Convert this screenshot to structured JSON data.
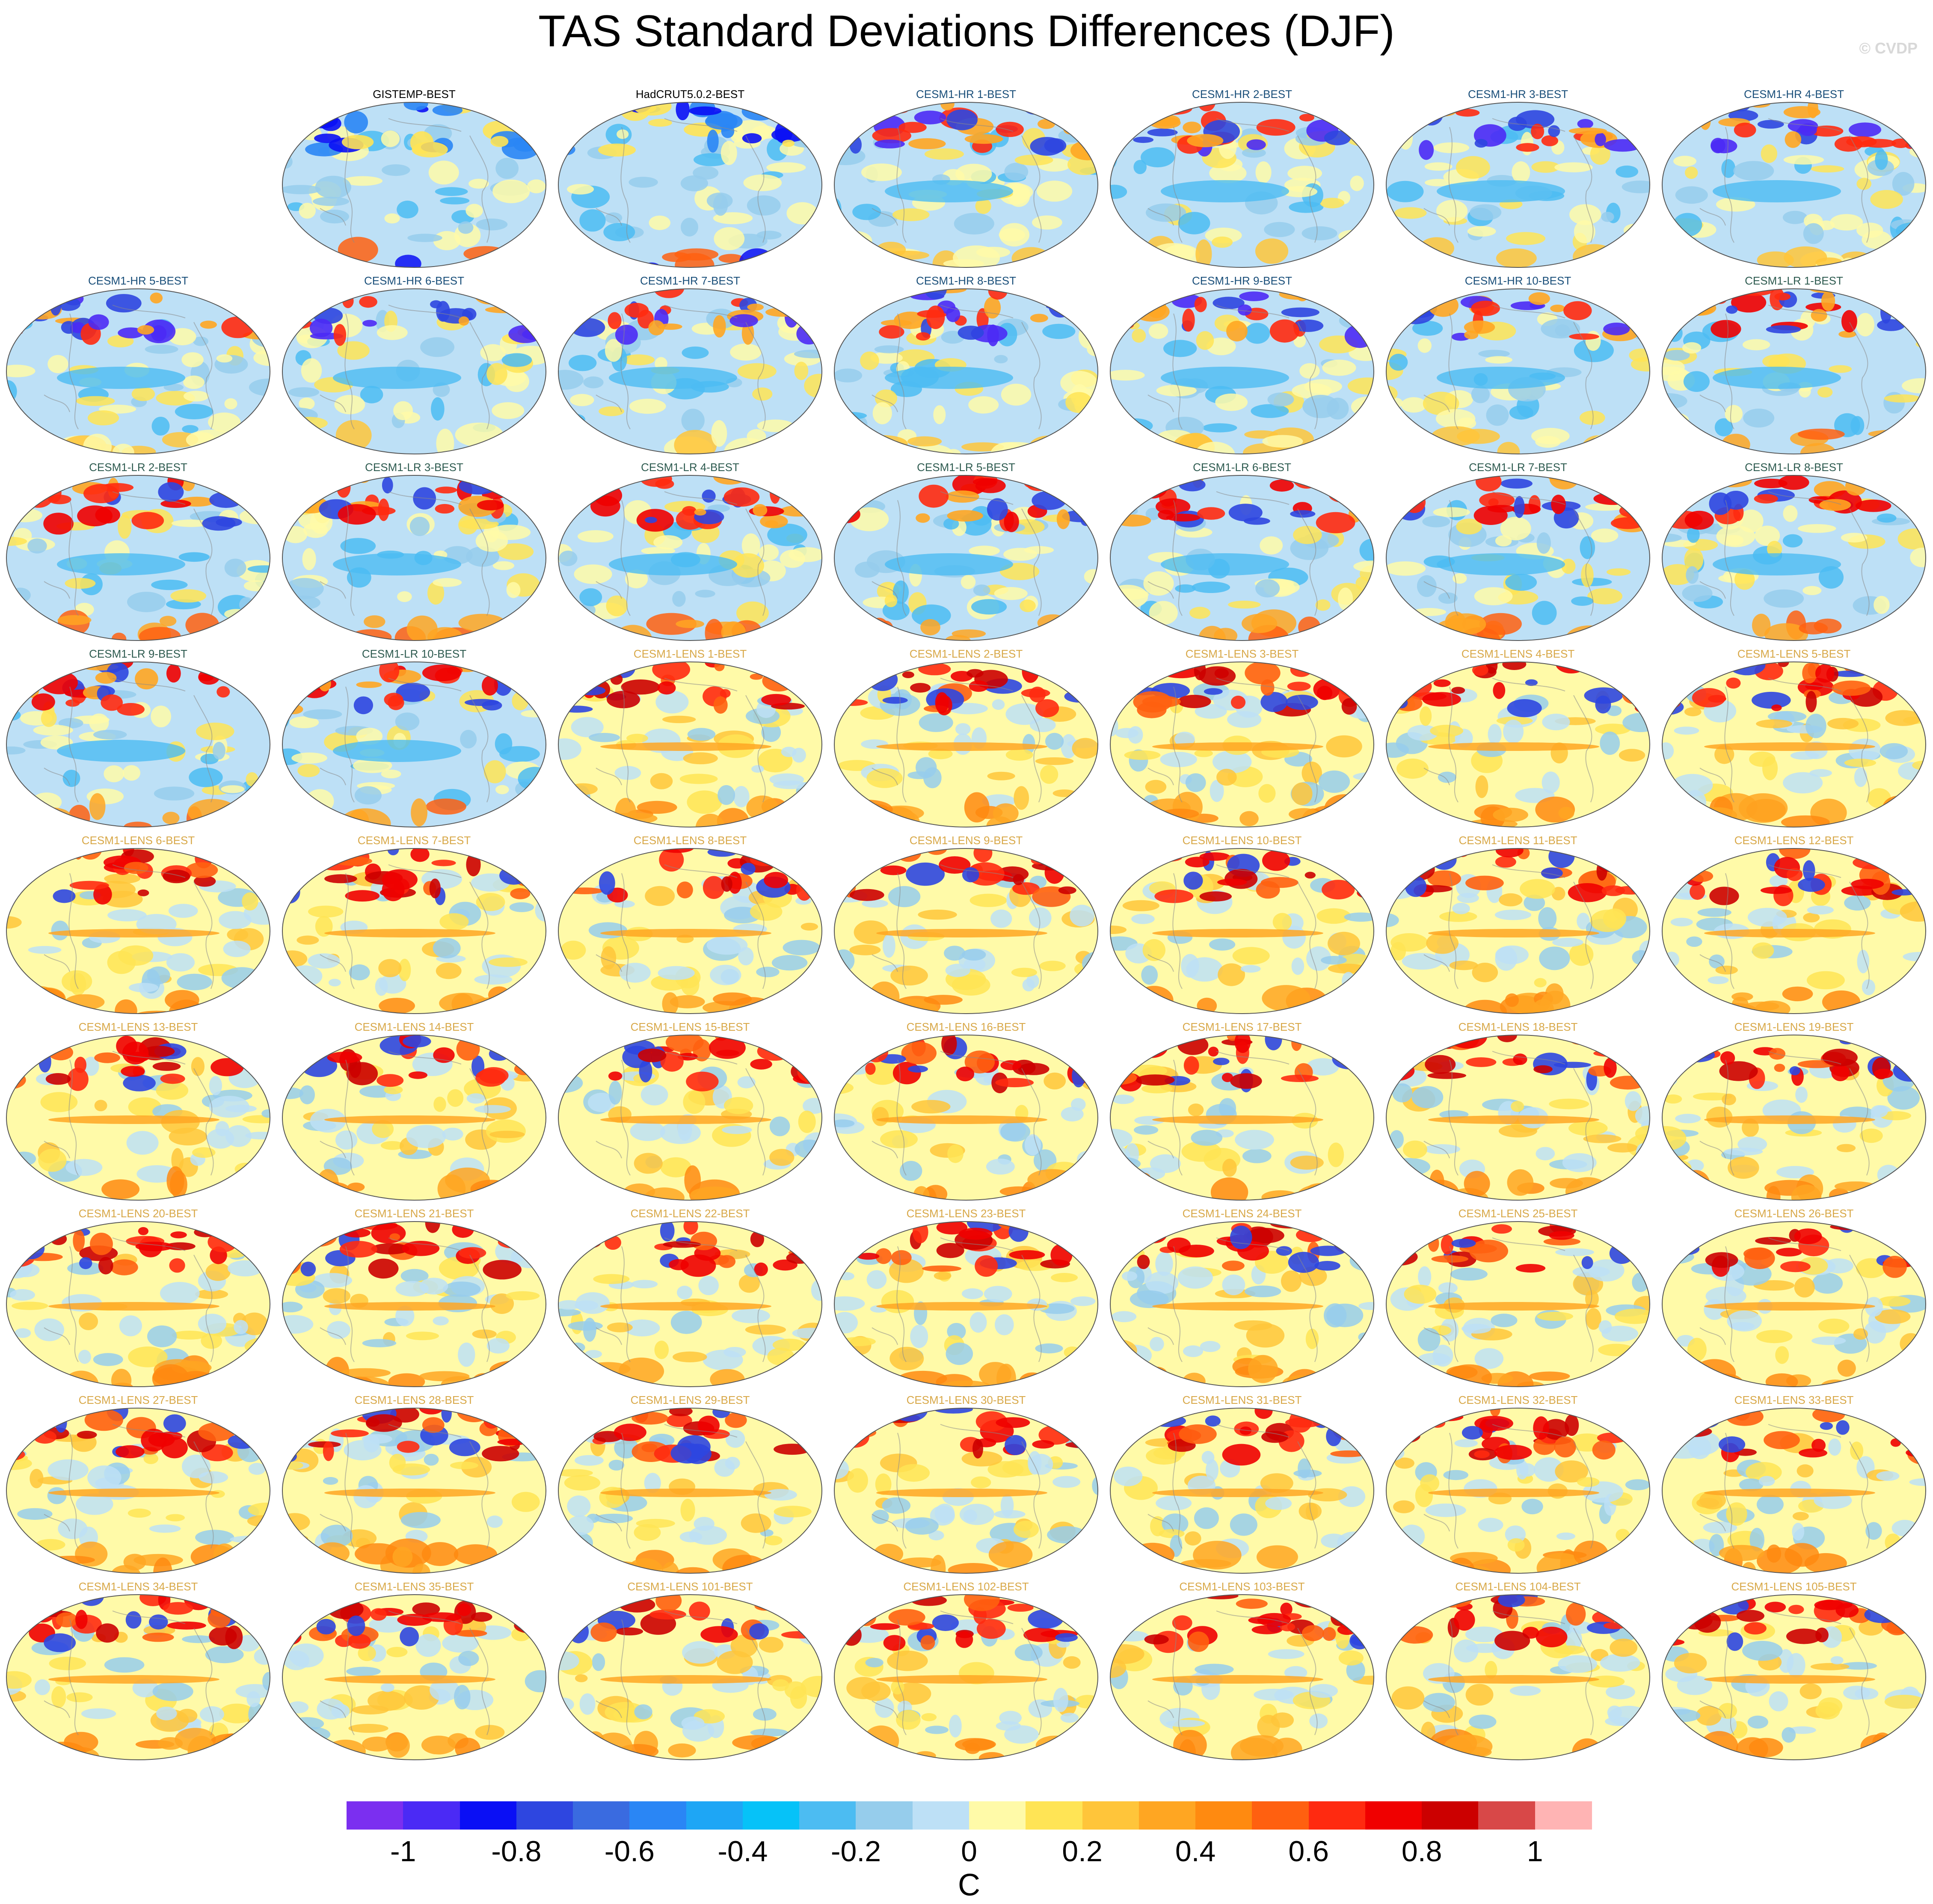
{
  "title": "TAS Standard Deviations Differences (DJF)",
  "watermark": "© CVDP",
  "colors": {
    "title_obs": "#000000",
    "title_hr": "#1a4f7a",
    "title_lr": "#2e5b50",
    "title_lens": "#d8a848"
  },
  "panels": [
    {
      "label": "GISTEMP-BEST",
      "group": "obs"
    },
    {
      "label": "HadCRUT5.0.2-BEST",
      "group": "obs"
    },
    {
      "label": "CESM1-HR 1-BEST",
      "group": "hr"
    },
    {
      "label": "CESM1-HR 2-BEST",
      "group": "hr"
    },
    {
      "label": "CESM1-HR 3-BEST",
      "group": "hr"
    },
    {
      "label": "CESM1-HR 4-BEST",
      "group": "hr"
    },
    {
      "label": "CESM1-HR 5-BEST",
      "group": "hr"
    },
    {
      "label": "CESM1-HR 6-BEST",
      "group": "hr"
    },
    {
      "label": "CESM1-HR 7-BEST",
      "group": "hr"
    },
    {
      "label": "CESM1-HR 8-BEST",
      "group": "hr"
    },
    {
      "label": "CESM1-HR 9-BEST",
      "group": "hr"
    },
    {
      "label": "CESM1-HR 10-BEST",
      "group": "hr"
    },
    {
      "label": "CESM1-LR 1-BEST",
      "group": "lr"
    },
    {
      "label": "CESM1-LR 2-BEST",
      "group": "lr"
    },
    {
      "label": "CESM1-LR 3-BEST",
      "group": "lr"
    },
    {
      "label": "CESM1-LR 4-BEST",
      "group": "lr"
    },
    {
      "label": "CESM1-LR 5-BEST",
      "group": "lr"
    },
    {
      "label": "CESM1-LR 6-BEST",
      "group": "lr"
    },
    {
      "label": "CESM1-LR 7-BEST",
      "group": "lr"
    },
    {
      "label": "CESM1-LR 8-BEST",
      "group": "lr"
    },
    {
      "label": "CESM1-LR 9-BEST",
      "group": "lr"
    },
    {
      "label": "CESM1-LR 10-BEST",
      "group": "lr"
    },
    {
      "label": "CESM1-LENS 1-BEST",
      "group": "lens"
    },
    {
      "label": "CESM1-LENS 2-BEST",
      "group": "lens"
    },
    {
      "label": "CESM1-LENS 3-BEST",
      "group": "lens"
    },
    {
      "label": "CESM1-LENS 4-BEST",
      "group": "lens"
    },
    {
      "label": "CESM1-LENS 5-BEST",
      "group": "lens"
    },
    {
      "label": "CESM1-LENS 6-BEST",
      "group": "lens"
    },
    {
      "label": "CESM1-LENS 7-BEST",
      "group": "lens"
    },
    {
      "label": "CESM1-LENS 8-BEST",
      "group": "lens"
    },
    {
      "label": "CESM1-LENS 9-BEST",
      "group": "lens"
    },
    {
      "label": "CESM1-LENS 10-BEST",
      "group": "lens"
    },
    {
      "label": "CESM1-LENS 11-BEST",
      "group": "lens"
    },
    {
      "label": "CESM1-LENS 12-BEST",
      "group": "lens"
    },
    {
      "label": "CESM1-LENS 13-BEST",
      "group": "lens"
    },
    {
      "label": "CESM1-LENS 14-BEST",
      "group": "lens"
    },
    {
      "label": "CESM1-LENS 15-BEST",
      "group": "lens"
    },
    {
      "label": "CESM1-LENS 16-BEST",
      "group": "lens"
    },
    {
      "label": "CESM1-LENS 17-BEST",
      "group": "lens"
    },
    {
      "label": "CESM1-LENS 18-BEST",
      "group": "lens"
    },
    {
      "label": "CESM1-LENS 19-BEST",
      "group": "lens"
    },
    {
      "label": "CESM1-LENS 20-BEST",
      "group": "lens"
    },
    {
      "label": "CESM1-LENS 21-BEST",
      "group": "lens"
    },
    {
      "label": "CESM1-LENS 22-BEST",
      "group": "lens"
    },
    {
      "label": "CESM1-LENS 23-BEST",
      "group": "lens"
    },
    {
      "label": "CESM1-LENS 24-BEST",
      "group": "lens"
    },
    {
      "label": "CESM1-LENS 25-BEST",
      "group": "lens"
    },
    {
      "label": "CESM1-LENS 26-BEST",
      "group": "lens"
    },
    {
      "label": "CESM1-LENS 27-BEST",
      "group": "lens"
    },
    {
      "label": "CESM1-LENS 28-BEST",
      "group": "lens"
    },
    {
      "label": "CESM1-LENS 29-BEST",
      "group": "lens"
    },
    {
      "label": "CESM1-LENS 30-BEST",
      "group": "lens"
    },
    {
      "label": "CESM1-LENS 31-BEST",
      "group": "lens"
    },
    {
      "label": "CESM1-LENS 32-BEST",
      "group": "lens"
    },
    {
      "label": "CESM1-LENS 33-BEST",
      "group": "lens"
    },
    {
      "label": "CESM1-LENS 34-BEST",
      "group": "lens"
    },
    {
      "label": "CESM1-LENS 35-BEST",
      "group": "lens"
    },
    {
      "label": "CESM1-LENS 101-BEST",
      "group": "lens"
    },
    {
      "label": "CESM1-LENS 102-BEST",
      "group": "lens"
    },
    {
      "label": "CESM1-LENS 103-BEST",
      "group": "lens"
    },
    {
      "label": "CESM1-LENS 104-BEST",
      "group": "lens"
    },
    {
      "label": "CESM1-LENS 105-BEST",
      "group": "lens"
    }
  ],
  "colorbar": {
    "units": "C",
    "levels": [
      -1.1,
      -1.0,
      -0.9,
      -0.8,
      -0.7,
      -0.6,
      -0.5,
      -0.4,
      -0.3,
      -0.2,
      -0.1,
      0,
      0.1,
      0.2,
      0.3,
      0.4,
      0.5,
      0.6,
      0.7,
      0.8,
      0.9,
      1.0,
      1.1
    ],
    "colors": [
      "#7b2ff0",
      "#4b2af5",
      "#0a0ff5",
      "#2e46e0",
      "#3a6be0",
      "#2a86f5",
      "#1ea6f5",
      "#06c2f8",
      "#4cbcf2",
      "#96cdec",
      "#bde0f6",
      "#fffaa8",
      "#ffe455",
      "#ffc53a",
      "#ffa622",
      "#ff8a10",
      "#ff6010",
      "#ff2a10",
      "#f00000",
      "#cc0000",
      "#d84848",
      "#ffb4b4"
    ],
    "tick_labels": [
      {
        "value": -1.0,
        "text": "-1"
      },
      {
        "value": -0.8,
        "text": "-0.8"
      },
      {
        "value": -0.6,
        "text": "-0.6"
      },
      {
        "value": -0.4,
        "text": "-0.4"
      },
      {
        "value": -0.2,
        "text": "-0.2"
      },
      {
        "value": 0,
        "text": "0"
      },
      {
        "value": 0.2,
        "text": "0.2"
      },
      {
        "value": 0.4,
        "text": "0.4"
      },
      {
        "value": 0.6,
        "text": "0.6"
      },
      {
        "value": 0.8,
        "text": "0.8"
      },
      {
        "value": 1.0,
        "text": "1"
      }
    ]
  }
}
